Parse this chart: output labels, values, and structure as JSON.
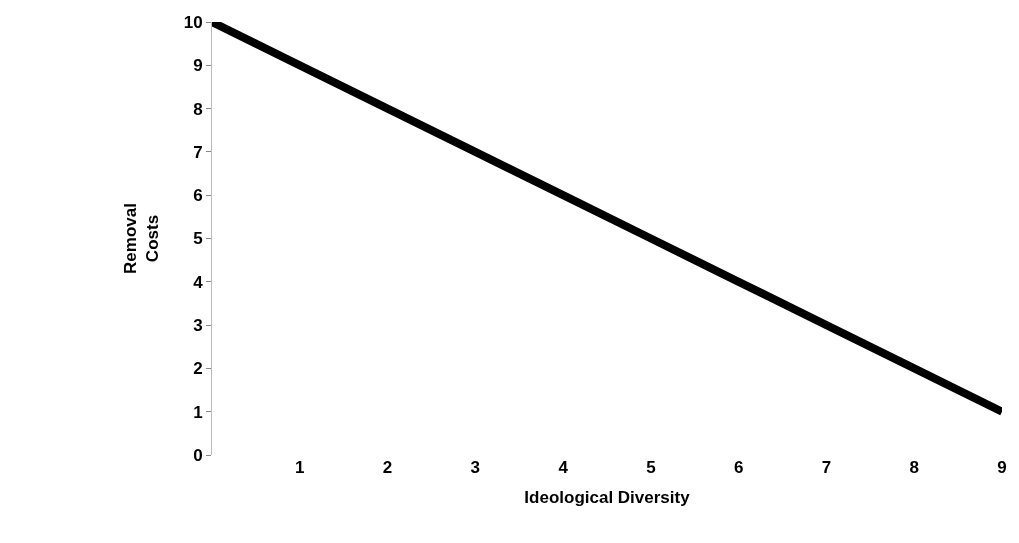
{
  "chart_data": {
    "type": "line",
    "xlabel": "Ideological Diversity",
    "ylabel": "Removal\nCosts",
    "x": [
      0,
      1,
      2,
      3,
      4,
      5,
      6,
      7,
      8,
      9
    ],
    "series": [
      {
        "color": "#000000",
        "values": [
          10,
          9,
          8,
          7,
          6,
          5,
          4,
          3,
          2,
          1
        ]
      }
    ],
    "xlim": [
      0,
      9
    ],
    "xticks": [
      1,
      2,
      3,
      4,
      5,
      6,
      7,
      8,
      9
    ],
    "ylim": [
      0,
      10
    ],
    "yticks": [
      0,
      1,
      2,
      3,
      4,
      5,
      6,
      7,
      8,
      9,
      10
    ],
    "marker": "none",
    "line_style": "solid"
  }
}
